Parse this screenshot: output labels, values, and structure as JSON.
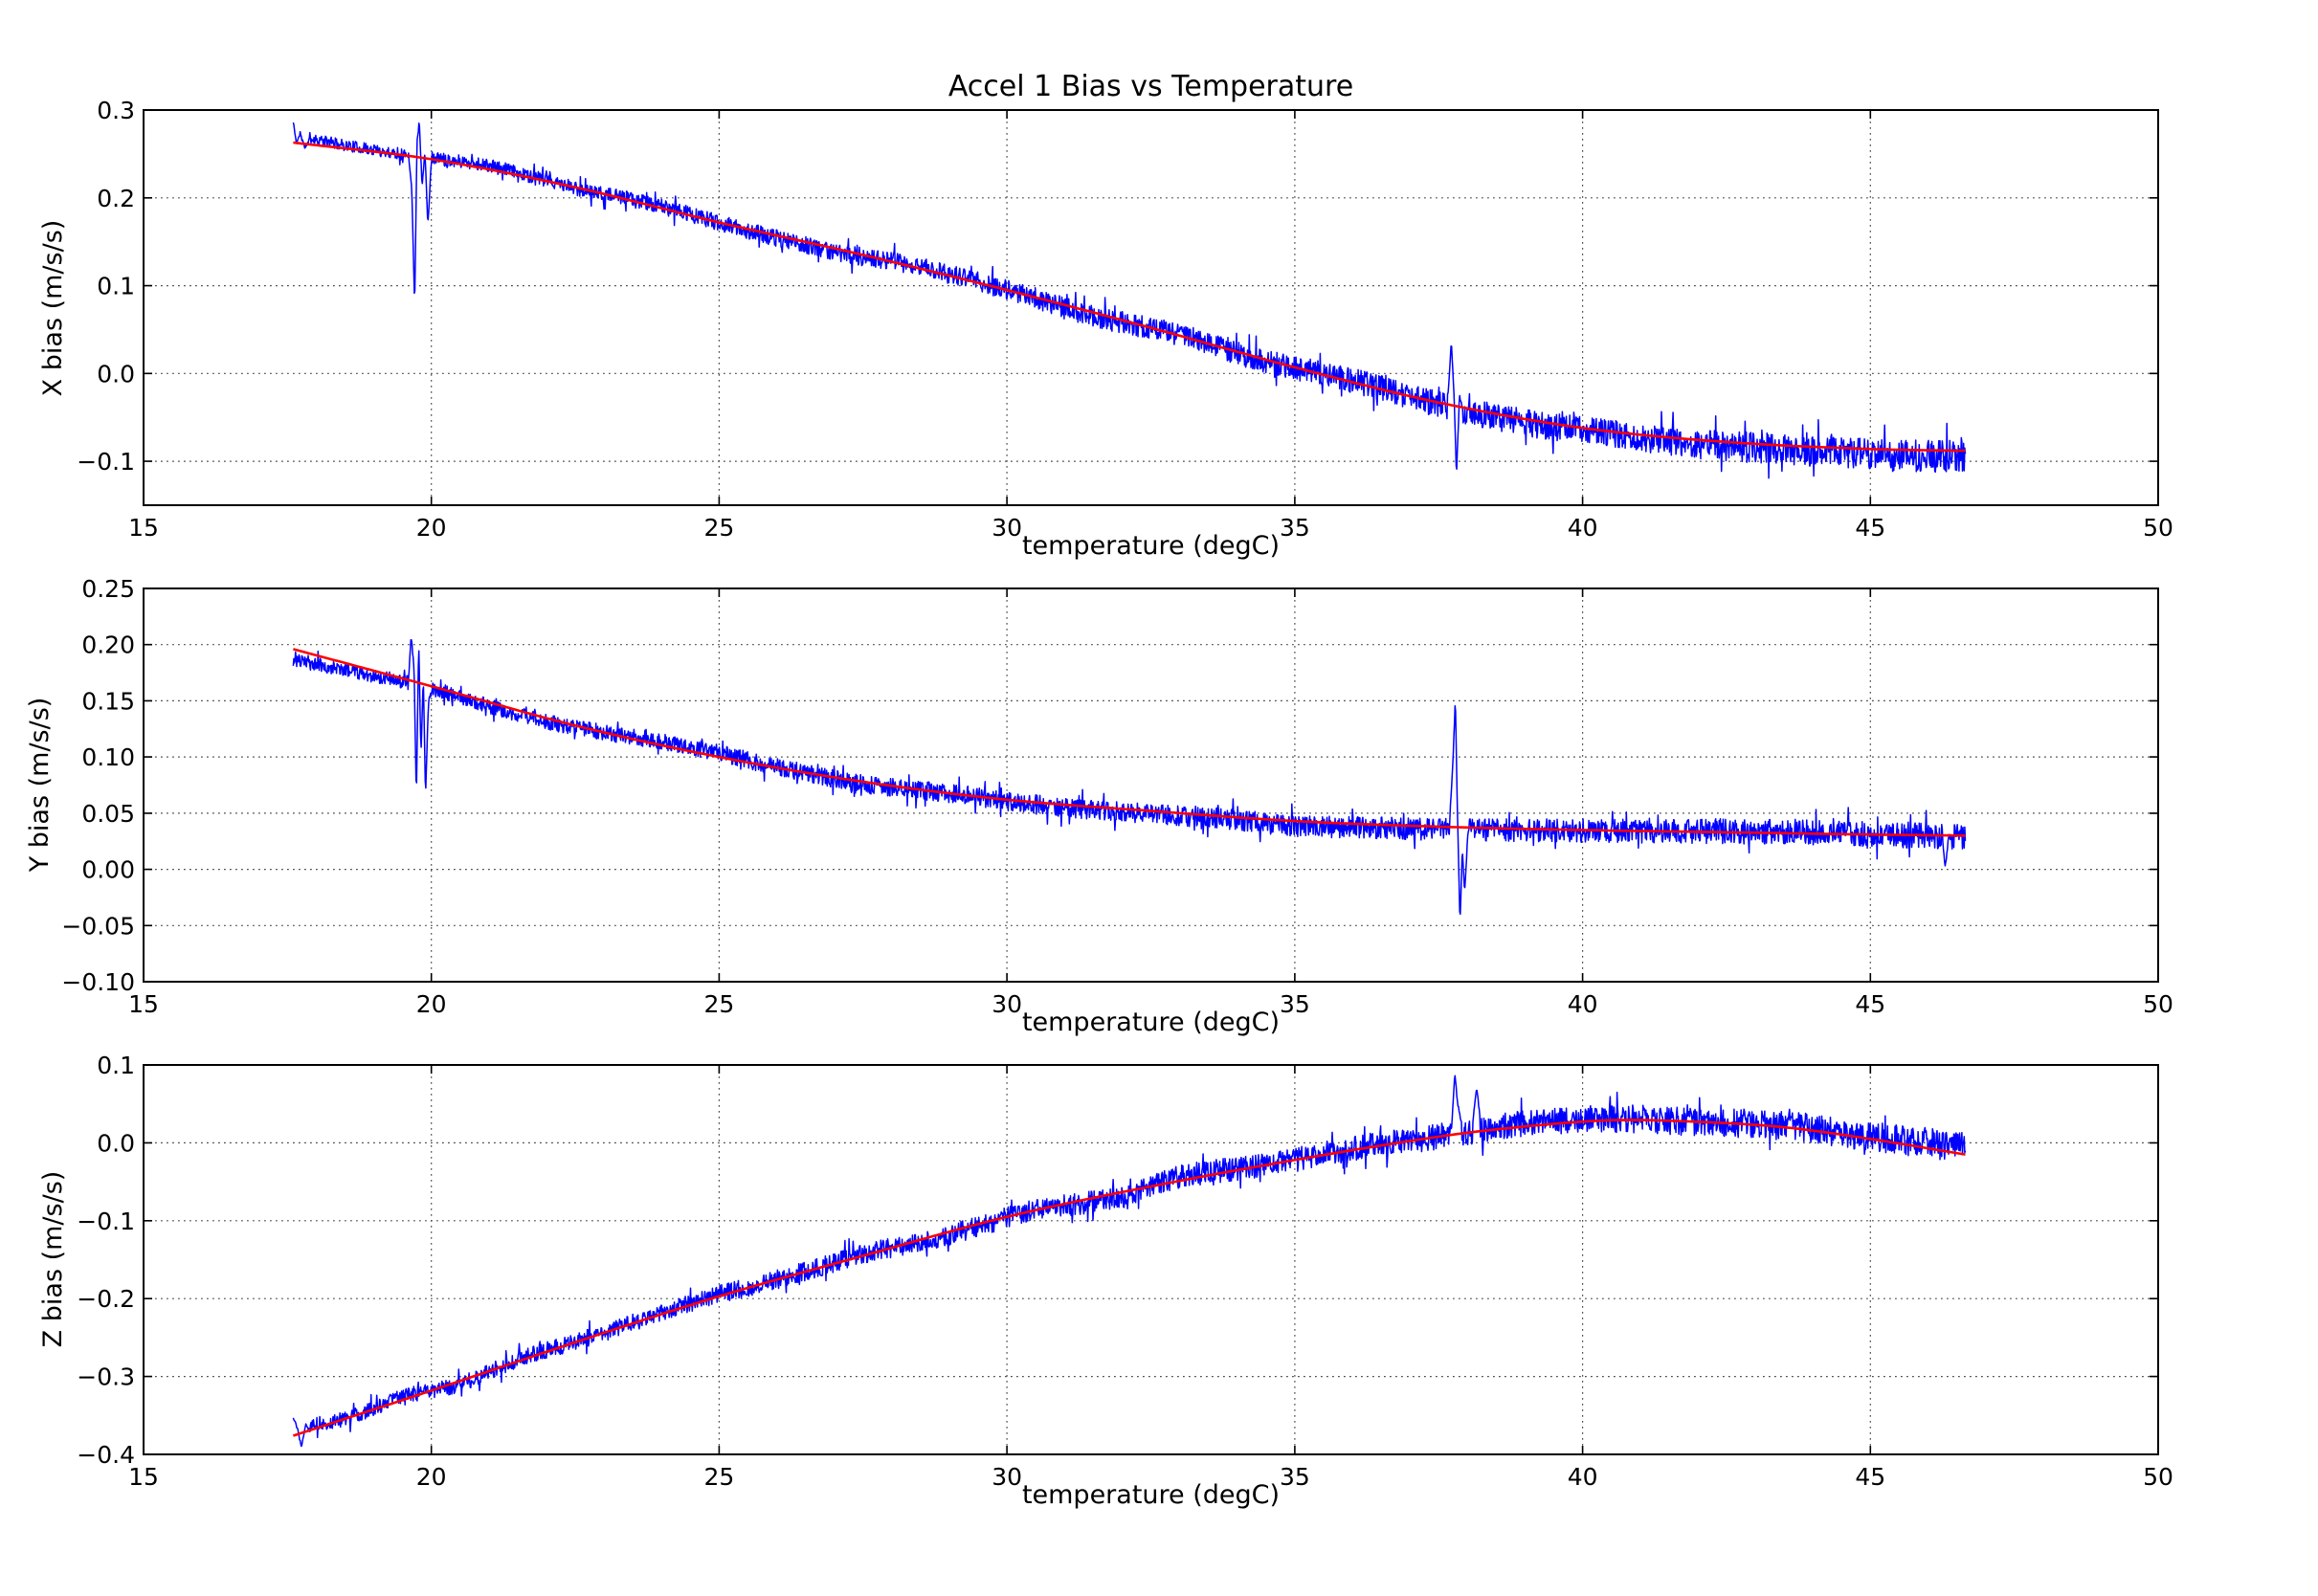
{
  "figure": {
    "title": "Accel 1 Bias vs Temperature",
    "background_color": "#ffffff",
    "axes_color": "#000000",
    "grid_color": "#000000",
    "data_color": "#0000ff",
    "fit_color": "#ff0000"
  },
  "chart_data": [
    {
      "type": "line",
      "title": "Accel 1 Bias vs Temperature",
      "xlabel": "temperature (degC)",
      "ylabel": "X bias (m/s/s)",
      "xlim": [
        15,
        50
      ],
      "ylim": [
        -0.15,
        0.3
      ],
      "xticks": [
        15,
        20,
        25,
        30,
        35,
        40,
        45,
        50
      ],
      "xtick_labels": [
        "15",
        "20",
        "25",
        "30",
        "35",
        "40",
        "45",
        "50"
      ],
      "yticks": [
        0.3,
        0.2,
        0.1,
        0.0,
        -0.1
      ],
      "ytick_labels": [
        "0.3",
        "0.2",
        "0.1",
        "0.0",
        "−0.1"
      ],
      "grid": true,
      "legend": null,
      "series": [
        {
          "name": "measured X bias",
          "style": "noisy",
          "color": "#0000ff",
          "x_range": [
            17.6,
            46.65
          ],
          "trend_points": [
            [
              17.6,
              0.263
            ],
            [
              20,
              0.244
            ],
            [
              22.5,
              0.212
            ],
            [
              25,
              0.172
            ],
            [
              27.5,
              0.135
            ],
            [
              30,
              0.095
            ],
            [
              32.5,
              0.052
            ],
            [
              35,
              0.007
            ],
            [
              37.5,
              -0.033
            ],
            [
              40,
              -0.062
            ],
            [
              42.5,
              -0.078
            ],
            [
              45,
              -0.086
            ],
            [
              46.65,
              -0.088
            ]
          ],
          "offset_points": [
            [
              17.6,
              0.01
            ],
            [
              18.4,
              0.004
            ],
            [
              19.6,
              0.001
            ],
            [
              21,
              0.004
            ],
            [
              22.5,
              -0.001
            ],
            [
              24,
              0.002
            ],
            [
              25.5,
              -0.002
            ],
            [
              27,
              -0.004
            ],
            [
              28.5,
              0.002
            ],
            [
              30,
              0.0
            ],
            [
              31.5,
              -0.004
            ],
            [
              33,
              0.001
            ],
            [
              34.5,
              -0.002
            ],
            [
              36,
              0.002
            ],
            [
              37.5,
              -0.002
            ],
            [
              39,
              -0.004
            ],
            [
              40.5,
              -0.002
            ],
            [
              42,
              -0.005
            ],
            [
              43.5,
              -0.004
            ],
            [
              45,
              -0.006
            ],
            [
              46.65,
              -0.007
            ]
          ],
          "noise_halfwidth": [
            0.006,
            0.019
          ],
          "spikes": [
            [
              [
                17.6,
                0.287
              ],
              [
                17.66,
                0.262
              ],
              [
                17.72,
                0.274
              ],
              [
                17.8,
                0.256
              ],
              [
                17.88,
                0.266
              ]
            ],
            [
              [
                19.6,
                0.252
              ],
              [
                19.66,
                0.208
              ],
              [
                19.71,
                0.076
              ],
              [
                19.75,
                0.262
              ],
              [
                19.79,
                0.287
              ],
              [
                19.84,
                0.213
              ],
              [
                19.89,
                0.252
              ],
              [
                19.94,
                0.168
              ],
              [
                20.0,
                0.245
              ]
            ],
            [
              [
                37.66,
                -0.026
              ],
              [
                37.72,
                0.035
              ],
              [
                37.77,
                -0.028
              ],
              [
                37.81,
                -0.116
              ],
              [
                37.86,
                -0.026
              ],
              [
                37.92,
                -0.04
              ]
            ]
          ],
          "seed": 11
        },
        {
          "name": "polynomial fit",
          "style": "smooth",
          "color": "#ff0000",
          "points": [
            [
              17.6,
              0.263
            ],
            [
              20,
              0.244
            ],
            [
              22.5,
              0.212
            ],
            [
              25,
              0.172
            ],
            [
              27.5,
              0.135
            ],
            [
              30,
              0.095
            ],
            [
              32.5,
              0.052
            ],
            [
              35,
              0.007
            ],
            [
              37.5,
              -0.033
            ],
            [
              40,
              -0.062
            ],
            [
              42.5,
              -0.078
            ],
            [
              45,
              -0.086
            ],
            [
              46.65,
              -0.088
            ]
          ]
        }
      ]
    },
    {
      "type": "line",
      "title": "",
      "xlabel": "temperature (degC)",
      "ylabel": "Y bias (m/s/s)",
      "xlim": [
        15,
        50
      ],
      "ylim": [
        -0.1,
        0.25
      ],
      "xticks": [
        15,
        20,
        25,
        30,
        35,
        40,
        45,
        50
      ],
      "xtick_labels": [
        "15",
        "20",
        "25",
        "30",
        "35",
        "40",
        "45",
        "50"
      ],
      "yticks": [
        0.25,
        0.2,
        0.15,
        0.1,
        0.05,
        0.0,
        -0.05,
        -0.1
      ],
      "ytick_labels": [
        "0.25",
        "0.20",
        "0.15",
        "0.10",
        "0.05",
        "0.00",
        "−0.05",
        "−0.10"
      ],
      "grid": true,
      "legend": null,
      "series": [
        {
          "name": "measured Y bias",
          "style": "noisy",
          "color": "#0000ff",
          "x_range": [
            17.6,
            46.65
          ],
          "trend_points": [
            [
              17.6,
              0.196
            ],
            [
              20,
              0.163
            ],
            [
              22.5,
              0.128
            ],
            [
              25,
              0.1
            ],
            [
              27.5,
              0.078
            ],
            [
              30,
              0.062
            ],
            [
              32.5,
              0.052
            ],
            [
              35,
              0.043
            ],
            [
              37.5,
              0.038
            ],
            [
              40,
              0.035
            ],
            [
              42.5,
              0.033
            ],
            [
              45,
              0.031
            ],
            [
              46.65,
              0.03
            ]
          ],
          "offset_points": [
            [
              17.6,
              -0.01
            ],
            [
              18.5,
              -0.006
            ],
            [
              20,
              -0.002
            ],
            [
              21.5,
              -0.004
            ],
            [
              23,
              0.0
            ],
            [
              24.5,
              0.004
            ],
            [
              26,
              0.001
            ],
            [
              27.5,
              -0.002
            ],
            [
              29,
              0.0
            ],
            [
              30.5,
              -0.002
            ],
            [
              32,
              -0.003
            ],
            [
              33.5,
              -0.002
            ],
            [
              35,
              -0.004
            ],
            [
              36.5,
              -0.003
            ],
            [
              38,
              -0.002
            ],
            [
              39.5,
              -0.001
            ],
            [
              41,
              0.0
            ],
            [
              42.5,
              0.001
            ],
            [
              44,
              0.001
            ],
            [
              45.5,
              0.0
            ],
            [
              46.65,
              -0.001
            ]
          ],
          "noise_halfwidth": [
            0.006,
            0.012
          ],
          "spikes": [
            [
              [
                19.6,
                0.168
              ],
              [
                19.65,
                0.208
              ],
              [
                19.7,
                0.178
              ],
              [
                19.74,
                0.062
              ],
              [
                19.78,
                0.205
              ],
              [
                19.82,
                0.1
              ],
              [
                19.86,
                0.172
              ],
              [
                19.9,
                0.064
              ],
              [
                19.95,
                0.15
              ],
              [
                20.01,
                0.158
              ]
            ],
            [
              [
                37.7,
                0.052
              ],
              [
                37.75,
                0.098
              ],
              [
                37.79,
                0.152
              ],
              [
                37.83,
                0.04
              ],
              [
                37.87,
                -0.048
              ],
              [
                37.91,
                0.018
              ],
              [
                37.95,
                -0.02
              ],
              [
                38.01,
                0.034
              ]
            ],
            [
              [
                46.25,
                0.03
              ],
              [
                46.3,
                0.002
              ],
              [
                46.36,
                0.028
              ]
            ]
          ],
          "seed": 23
        },
        {
          "name": "polynomial fit",
          "style": "smooth",
          "color": "#ff0000",
          "points": [
            [
              17.6,
              0.196
            ],
            [
              20,
              0.163
            ],
            [
              22.5,
              0.128
            ],
            [
              25,
              0.1
            ],
            [
              27.5,
              0.078
            ],
            [
              30,
              0.062
            ],
            [
              32.5,
              0.052
            ],
            [
              35,
              0.043
            ],
            [
              37.5,
              0.038
            ],
            [
              40,
              0.035
            ],
            [
              42.5,
              0.033
            ],
            [
              45,
              0.031
            ],
            [
              46.65,
              0.03
            ]
          ]
        }
      ]
    },
    {
      "type": "line",
      "title": "",
      "xlabel": "temperature (degC)",
      "ylabel": "Z bias (m/s/s)",
      "xlim": [
        15,
        50
      ],
      "ylim": [
        -0.4,
        0.1
      ],
      "xticks": [
        15,
        20,
        25,
        30,
        35,
        40,
        45,
        50
      ],
      "xtick_labels": [
        "15",
        "20",
        "25",
        "30",
        "35",
        "40",
        "45",
        "50"
      ],
      "yticks": [
        0.1,
        0.0,
        -0.1,
        -0.2,
        -0.3,
        -0.4
      ],
      "ytick_labels": [
        "0.1",
        "0.0",
        "−0.1",
        "−0.2",
        "−0.3",
        "−0.4"
      ],
      "grid": true,
      "legend": null,
      "series": [
        {
          "name": "measured Z bias",
          "style": "noisy",
          "color": "#0000ff",
          "x_range": [
            17.6,
            46.65
          ],
          "trend_points": [
            [
              17.6,
              -0.376
            ],
            [
              20,
              -0.318
            ],
            [
              22.5,
              -0.256
            ],
            [
              25,
              -0.197
            ],
            [
              27.5,
              -0.145
            ],
            [
              30,
              -0.095
            ],
            [
              32.5,
              -0.056
            ],
            [
              35,
              -0.022
            ],
            [
              37.5,
              0.008
            ],
            [
              39,
              0.021
            ],
            [
              40.5,
              0.029
            ],
            [
              42,
              0.027
            ],
            [
              43.5,
              0.02
            ],
            [
              45,
              0.005
            ],
            [
              46.65,
              -0.015
            ]
          ],
          "offset_points": [
            [
              17.6,
              0.012
            ],
            [
              18.5,
              0.0
            ],
            [
              19.5,
              0.004
            ],
            [
              20.5,
              -0.004
            ],
            [
              21.5,
              0.002
            ],
            [
              23,
              0.0
            ],
            [
              24.5,
              0.003
            ],
            [
              26,
              0.0
            ],
            [
              27.5,
              0.002
            ],
            [
              29,
              -0.004
            ],
            [
              30.5,
              0.0
            ],
            [
              32,
              -0.006
            ],
            [
              33,
              0.005
            ],
            [
              34.5,
              0.0
            ],
            [
              36,
              0.002
            ],
            [
              37.5,
              0.0
            ],
            [
              39,
              0.004
            ],
            [
              40.5,
              0.002
            ],
            [
              42,
              0.0
            ],
            [
              43.5,
              0.002
            ],
            [
              45,
              0.004
            ],
            [
              46.65,
              0.009
            ]
          ],
          "noise_halfwidth": [
            0.009,
            0.02
          ],
          "spikes": [
            [
              [
                17.6,
                -0.352
              ],
              [
                17.67,
                -0.366
              ],
              [
                17.74,
                -0.391
              ],
              [
                17.82,
                -0.362
              ],
              [
                17.9,
                -0.372
              ]
            ],
            [
              [
                37.72,
                0.012
              ],
              [
                37.78,
                0.09
              ],
              [
                37.83,
                0.05
              ],
              [
                37.89,
                0.028
              ]
            ],
            [
              [
                38.1,
                0.03
              ],
              [
                38.16,
                0.072
              ],
              [
                38.22,
                0.032
              ]
            ]
          ],
          "seed": 37
        },
        {
          "name": "polynomial fit",
          "style": "smooth",
          "color": "#ff0000",
          "points": [
            [
              17.6,
              -0.376
            ],
            [
              20,
              -0.318
            ],
            [
              22.5,
              -0.256
            ],
            [
              25,
              -0.197
            ],
            [
              27.5,
              -0.145
            ],
            [
              30,
              -0.095
            ],
            [
              32.5,
              -0.056
            ],
            [
              35,
              -0.022
            ],
            [
              37.5,
              0.008
            ],
            [
              39,
              0.021
            ],
            [
              40.5,
              0.029
            ],
            [
              42,
              0.027
            ],
            [
              43.5,
              0.02
            ],
            [
              45,
              0.005
            ],
            [
              46.65,
              -0.015
            ]
          ]
        }
      ]
    }
  ]
}
